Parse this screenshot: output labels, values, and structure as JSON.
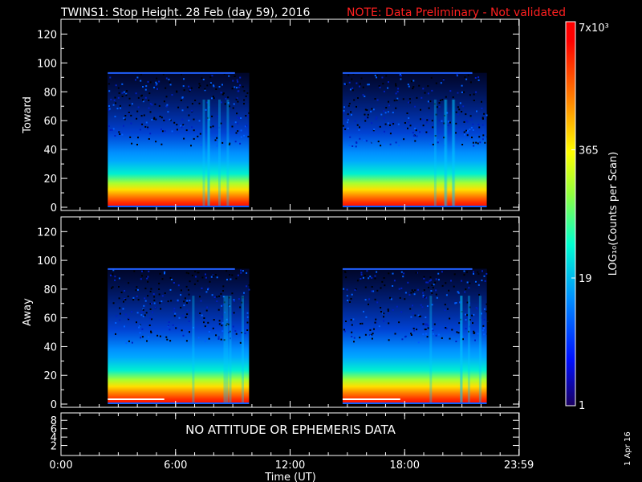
{
  "title": "TWINS1: Stop Height. 28 Feb (day  59), 2016",
  "note": "NOTE: Data Preliminary - Not validated",
  "note_color": "#ff2020",
  "date_stamp": "1 Apr 16",
  "no_data_text": "NO ATTITUDE OR EPHEMERIS DATA",
  "chart_data": [
    {
      "type": "heatmap",
      "panel": "toward",
      "ylabel": "Toward",
      "ylim": [
        0,
        128
      ],
      "yticks": [
        "0",
        "20",
        "40",
        "60",
        "80",
        "100",
        "120"
      ],
      "x_unit": "hours UT",
      "xlim": [
        0,
        24
      ],
      "data_blocks": [
        {
          "x_start": 2.45,
          "x_end": 9.85,
          "y_top": 93
        },
        {
          "x_start": 14.75,
          "x_end": 22.3,
          "y_top": 93
        }
      ]
    },
    {
      "type": "heatmap",
      "panel": "away",
      "ylabel": "Away",
      "ylim": [
        0,
        128
      ],
      "yticks": [
        "0",
        "20",
        "40",
        "60",
        "80",
        "100",
        "120"
      ],
      "x_unit": "hours UT",
      "xlim": [
        0,
        24
      ],
      "data_blocks": [
        {
          "x_start": 2.45,
          "x_end": 9.85,
          "y_top": 94
        },
        {
          "x_start": 14.75,
          "x_end": 22.3,
          "y_top": 94
        }
      ]
    },
    {
      "type": "line",
      "panel": "ephemeris",
      "ylim": [
        0,
        9
      ],
      "yticks": [
        "2",
        "4",
        "6",
        "8"
      ]
    }
  ],
  "x_axis": {
    "label": "Time (UT)",
    "ticks": [
      {
        "value": 0,
        "label": "0:00"
      },
      {
        "value": 6,
        "label": "6:00"
      },
      {
        "value": 12,
        "label": "12:00"
      },
      {
        "value": 18,
        "label": "18:00"
      },
      {
        "value": 23.983,
        "label": "23:59"
      }
    ]
  },
  "colorbar": {
    "label": "LOG₁₀(Counts per Scan)",
    "ticks": [
      {
        "value": 1,
        "label": "1"
      },
      {
        "value": 19,
        "label": "19"
      },
      {
        "value": 365,
        "label": "365"
      },
      {
        "value": 7000,
        "label": "7x10³"
      }
    ],
    "min": 1,
    "max": 7000,
    "colors": [
      "#1a0060",
      "#0010ff",
      "#0090ff",
      "#00ffd0",
      "#90ff40",
      "#ffff00",
      "#ff8000",
      "#ff0000",
      "#ff0000"
    ]
  }
}
